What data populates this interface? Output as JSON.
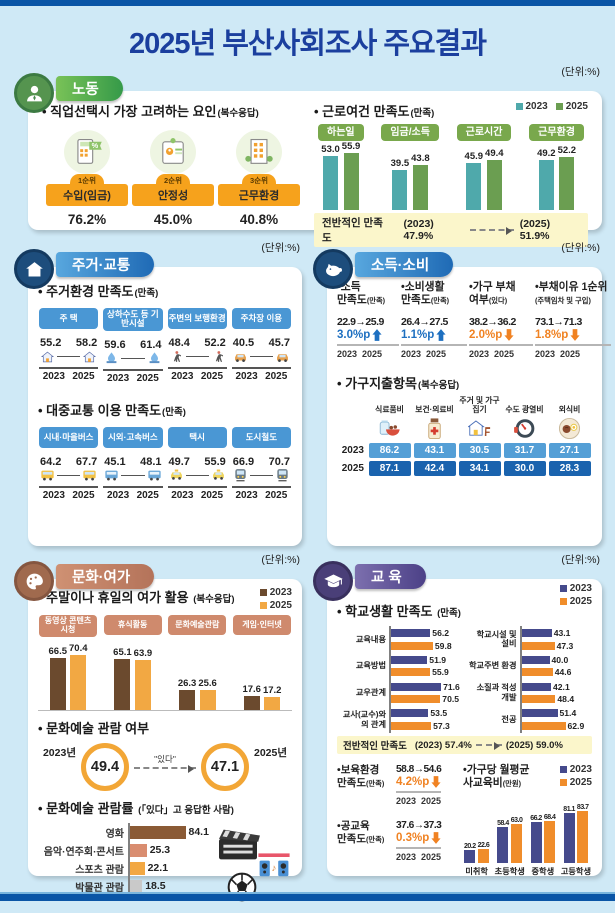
{
  "page": {
    "title": "2025년 부산사회조사 주요결과",
    "unit_label": "(단위:%)"
  },
  "sections": {
    "labor": {
      "title": "노동",
      "job_factors": {
        "heading": "직업선택시 가장 고려하는 요인",
        "note": "(복수응답)",
        "items": [
          {
            "rank": "1순위",
            "label": "수입(임금)",
            "value": "76.2%",
            "icon": "calculator-percent-icon"
          },
          {
            "rank": "2순위",
            "label": "안정성",
            "value": "45.0%",
            "icon": "certificate-icon"
          },
          {
            "rank": "3순위",
            "label": "근무환경",
            "value": "40.8%",
            "icon": "office-building-icon"
          }
        ]
      },
      "work_conditions": {
        "heading": "근로여건 만족도",
        "note": "(만족)",
        "overall_label": "전반적인 만족도",
        "overall_from": "(2023) 47.9%",
        "overall_to": "(2025) 51.9%"
      }
    },
    "housing": {
      "title": "주거·교통",
      "env_heading": "주거환경 만족도",
      "env_note": "(만족)",
      "transit_heading": "대중교통 이용 만족도",
      "transit_note": "(만족)"
    },
    "income": {
      "title": "소득·소비",
      "indicators": [
        {
          "title": "소득",
          "title2": "만족도",
          "note": "(만족)",
          "values": "22.9→25.9",
          "change": "3.0%p",
          "direction": "up",
          "years": "2023  2025"
        },
        {
          "title": "소비생활",
          "title2": "만족도",
          "note": "(만족)",
          "values": "26.4→27.5",
          "change": "1.1%p",
          "direction": "up",
          "years": "2023  2025"
        },
        {
          "title": "가구 부채",
          "title2": "여부",
          "note": "(있다)",
          "values": "38.2→36.2",
          "change": "2.0%p",
          "direction": "down",
          "years": "2023  2025"
        },
        {
          "title": "부채이유 1순위",
          "title2": "",
          "note": "(주택임차 및 구입)",
          "values": "73.1→71.3",
          "change": "1.8%p",
          "direction": "down",
          "years": "2023  2025"
        }
      ],
      "spending_heading": "가구지출항목",
      "spending_note": "(복수응답)"
    },
    "culture": {
      "title": "문화·여가",
      "leisure_heading": "주말이나 휴일의 여가 활용",
      "leisure_note": "(복수응답)",
      "attendance_heading": "문화예술 관람 여부",
      "attendance": {
        "left_year": "2023년",
        "left_value": "49.4",
        "arrow_label": "\"있다\"",
        "right_year": "2025년",
        "right_value": "47.1"
      },
      "rate_heading": "문화예술 관람률",
      "rate_note": "(「있다」고 응답한 사람)"
    },
    "education": {
      "title": "교 육",
      "school_heading": "학교생활 만족도",
      "school_note": "(만족)",
      "overall_label": "전반적인 만족도",
      "overall_from": "(2023) 57.4%",
      "overall_to": "(2025) 59.0%",
      "childcare": {
        "title": "보육환경",
        "title2": "만족도",
        "note": "(만족)",
        "values": "58.8→54.6",
        "change": "4.2%p",
        "direction": "down",
        "years": "2023  2025"
      },
      "public_edu": {
        "title": "공교육",
        "title2": "만족도",
        "note": "(만족)",
        "values": "37.6→37.3",
        "change": "0.3%p",
        "direction": "down",
        "years": "2023  2025"
      },
      "private_heading": "가구당 월평균",
      "private_heading2": "사교육비",
      "private_note": "(만원)"
    }
  },
  "chart_data": [
    {
      "id": "job_factors",
      "type": "bar",
      "title": "직업선택시 가장 고려하는 요인(복수응답)",
      "categories": [
        "수입(임금)",
        "안정성",
        "근무환경"
      ],
      "values": [
        76.2,
        45.0,
        40.8
      ]
    },
    {
      "id": "work_conditions",
      "type": "bar",
      "title": "근로여건 만족도(만족)",
      "categories": [
        "하는일",
        "임금/소득",
        "근로시간",
        "근무환경"
      ],
      "series": [
        {
          "name": "2023",
          "values": [
            53.0,
            39.5,
            45.9,
            49.2
          ]
        },
        {
          "name": "2025",
          "values": [
            55.9,
            43.8,
            49.4,
            52.2
          ]
        }
      ],
      "colors": [
        "#4fa9ab",
        "#6b9e51"
      ],
      "ylim": [
        0,
        60
      ],
      "annotation": "전반적인 만족도 (2023) 47.9% → (2025) 51.9%"
    },
    {
      "id": "housing_env",
      "type": "line",
      "title": "주거환경 만족도(만족)",
      "categories": [
        "주 택",
        "상하수도 등 기반시설",
        "주변의 보행환경",
        "주차장 이용"
      ],
      "icons": [
        "house-icon",
        "water-infra-icon",
        "pedestrian-icon",
        "car-icon"
      ],
      "series": [
        {
          "name": "2023",
          "values": [
            55.2,
            59.6,
            48.4,
            40.5
          ]
        },
        {
          "name": "2025",
          "values": [
            58.2,
            61.4,
            52.2,
            45.7
          ]
        }
      ]
    },
    {
      "id": "transit",
      "type": "line",
      "title": "대중교통 이용 만족도(만족)",
      "categories": [
        "시내·마을버스",
        "시외·고속버스",
        "택시",
        "도시철도"
      ],
      "icons": [
        "city-bus-icon",
        "express-bus-icon",
        "taxi-icon",
        "metro-icon"
      ],
      "series": [
        {
          "name": "2023",
          "values": [
            64.2,
            45.1,
            49.7,
            66.9
          ]
        },
        {
          "name": "2025",
          "values": [
            67.7,
            48.1,
            55.9,
            70.7
          ]
        }
      ]
    },
    {
      "id": "income_indicators",
      "type": "table",
      "title": "소득·소비 주요 지표(%)",
      "columns": [
        "소득 만족도(만족)",
        "소비생활 만족도(만족)",
        "가구 부채 여부(있다)",
        "부채이유 1순위(주택임차 및 구입)"
      ],
      "rows": [
        {
          "name": "2023",
          "values": [
            22.9,
            26.4,
            38.2,
            73.1
          ]
        },
        {
          "name": "2025",
          "values": [
            25.9,
            27.5,
            36.2,
            71.3
          ]
        },
        {
          "name": "변화(%p)",
          "values": [
            3.0,
            1.1,
            -2.0,
            -1.8
          ]
        }
      ]
    },
    {
      "id": "spending",
      "type": "table",
      "title": "가구지출항목(복수응답)",
      "columns": [
        "식료품비",
        "보건·의료비",
        "주거 및 가구집기",
        "수도 광열비",
        "외식비"
      ],
      "icons": [
        "food-jar-icon",
        "medicine-icon",
        "furnishing-icon",
        "utility-meter-icon",
        "dining-icon"
      ],
      "rows": [
        {
          "name": "2023",
          "values": [
            86.2,
            43.1,
            30.5,
            31.7,
            27.1
          ]
        },
        {
          "name": "2025",
          "values": [
            87.1,
            42.4,
            34.1,
            30.0,
            28.3
          ]
        }
      ],
      "row_colors": [
        "#549fd6",
        "#1a63ae"
      ]
    },
    {
      "id": "leisure",
      "type": "bar",
      "title": "주말이나 휴일의 여가 활용(복수응답)",
      "categories": [
        "동영상 콘텐츠 시청",
        "휴식활동",
        "문화예술관람",
        "게임·인터넷"
      ],
      "series": [
        {
          "name": "2023",
          "values": [
            66.5,
            65.1,
            26.3,
            17.6
          ]
        },
        {
          "name": "2025",
          "values": [
            70.4,
            63.9,
            25.6,
            17.2
          ]
        }
      ],
      "colors": [
        "#6b4a2e",
        "#f2a843"
      ]
    },
    {
      "id": "art_attendance",
      "type": "line",
      "title": "문화예술 관람 여부(있다)",
      "categories": [
        "2023년",
        "2025년"
      ],
      "values": [
        49.4,
        47.1
      ]
    },
    {
      "id": "attendance_rate",
      "type": "bar",
      "orientation": "horizontal",
      "title": "문화예술 관람률(「있다」고 응답한 사람)",
      "categories": [
        "영화",
        "음악·연주회·콘서트",
        "스포츠 관람",
        "박물관 관람"
      ],
      "values": [
        84.1,
        25.3,
        22.1,
        18.5
      ],
      "bar_colors": [
        "#8a5a35",
        "#d98d70",
        "#f2a843",
        "#c9c9c9"
      ]
    },
    {
      "id": "school_life_left",
      "type": "bar",
      "orientation": "horizontal",
      "title": "학교생활 만족도(만족) - 1",
      "categories": [
        "교육내용",
        "교육방법",
        "교우관계",
        "교사(교수)와의 관계"
      ],
      "series": [
        {
          "name": "2023",
          "values": [
            56.2,
            51.9,
            71.6,
            53.5
          ]
        },
        {
          "name": "2025",
          "values": [
            59.8,
            55.9,
            70.5,
            57.3
          ]
        }
      ],
      "colors": [
        "#454a8c",
        "#f08d2b"
      ]
    },
    {
      "id": "school_life_right",
      "type": "bar",
      "orientation": "horizontal",
      "title": "학교생활 만족도(만족) - 2",
      "categories": [
        "학교시설 및 설비",
        "학교주변 환경",
        "소질과 적성 개발",
        "전공"
      ],
      "series": [
        {
          "name": "2023",
          "values": [
            43.1,
            40.0,
            42.1,
            51.4
          ]
        },
        {
          "name": "2025",
          "values": [
            47.3,
            44.6,
            48.4,
            62.9
          ]
        }
      ],
      "colors": [
        "#454a8c",
        "#f08d2b"
      ]
    },
    {
      "id": "education_indicators",
      "type": "table",
      "title": "보육·공교육 만족도(%)",
      "columns": [
        "보육환경 만족도(만족)",
        "공교육 만족도(만족)"
      ],
      "rows": [
        {
          "name": "2023",
          "values": [
            58.8,
            37.6
          ]
        },
        {
          "name": "2025",
          "values": [
            54.6,
            37.3
          ]
        },
        {
          "name": "변화(%p)",
          "values": [
            -4.2,
            -0.3
          ]
        }
      ]
    },
    {
      "id": "private_edu",
      "type": "bar",
      "title": "가구당 월평균 사교육비(만원)",
      "categories": [
        "미취학",
        "초등학생",
        "중학생",
        "고등학생"
      ],
      "series": [
        {
          "name": "2023",
          "values": [
            20.2,
            58.4,
            66.2,
            81.1
          ]
        },
        {
          "name": "2025",
          "values": [
            22.6,
            63.0,
            68.4,
            83.7
          ]
        }
      ],
      "colors": [
        "#454a8c",
        "#f08d2b"
      ]
    }
  ]
}
